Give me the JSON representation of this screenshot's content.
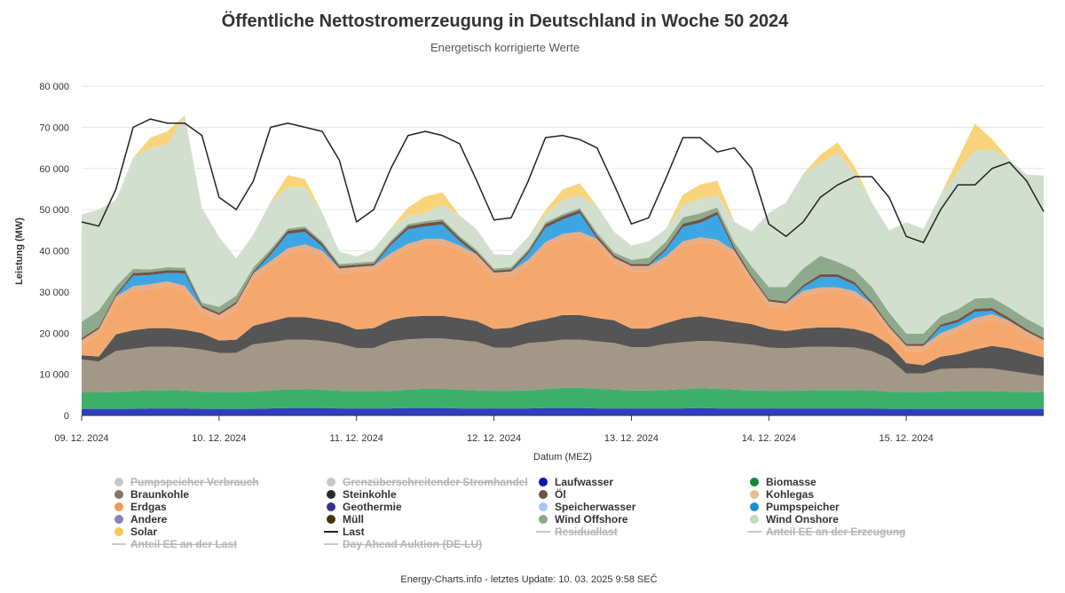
{
  "chart_data": {
    "type": "area",
    "title": "Öffentliche Nettostromerzeugung in Deutschland in Woche 50 2024",
    "subtitle": "Energetisch korrigierte Werte",
    "ylabel": "Leistung (MW)",
    "xlabel": "Datum (MEZ)",
    "ylim": [
      0,
      80000
    ],
    "y_ticks": [
      0,
      10000,
      20000,
      30000,
      40000,
      50000,
      60000,
      70000,
      80000
    ],
    "y_tick_labels": [
      "0",
      "10 000",
      "20 000",
      "30 000",
      "40 000",
      "50 000",
      "60 000",
      "70 000",
      "80 000"
    ],
    "xlim_hours": [
      0,
      168
    ],
    "x_tick_labels": [
      "09. 12. 2024",
      "10. 12. 2024",
      "11. 12. 2024",
      "12. 12. 2024",
      "13. 12. 2024",
      "14. 12. 2024",
      "15. 12. 2024"
    ],
    "stacked": true,
    "grid": "horizontal",
    "x_hours": [
      0,
      3,
      6,
      9,
      12,
      15,
      18,
      21,
      24,
      27,
      30,
      33,
      36,
      39,
      42,
      45,
      48,
      51,
      54,
      57,
      60,
      63,
      66,
      69,
      72,
      75,
      78,
      81,
      84,
      87,
      90,
      93,
      96,
      99,
      102,
      105,
      108,
      111,
      114,
      117,
      120,
      123,
      126,
      129,
      132,
      135,
      138,
      141,
      144,
      147,
      150,
      153,
      156,
      159,
      162,
      165,
      168
    ],
    "series": [
      {
        "name": "Laufwasser",
        "color": "#2f3fbf",
        "values": [
          1600,
          1600,
          1600,
          1600,
          1700,
          1700,
          1700,
          1600,
          1600,
          1600,
          1600,
          1700,
          1800,
          1800,
          1800,
          1700,
          1700,
          1700,
          1700,
          1800,
          1800,
          1800,
          1700,
          1700,
          1700,
          1700,
          1700,
          1800,
          1800,
          1800,
          1700,
          1700,
          1700,
          1700,
          1700,
          1700,
          1800,
          1700,
          1700,
          1700,
          1700,
          1700,
          1700,
          1700,
          1700,
          1700,
          1700,
          1600,
          1600,
          1600,
          1600,
          1600,
          1600,
          1600,
          1600,
          1600,
          1600
        ]
      },
      {
        "name": "Biomasse",
        "color": "#3cb06a",
        "values": [
          4000,
          4000,
          4100,
          4300,
          4500,
          4500,
          4400,
          4200,
          4100,
          4100,
          4200,
          4400,
          4600,
          4600,
          4500,
          4300,
          4200,
          4200,
          4300,
          4500,
          4700,
          4700,
          4600,
          4400,
          4300,
          4300,
          4400,
          4600,
          4900,
          4900,
          4800,
          4600,
          4400,
          4400,
          4500,
          4700,
          4800,
          4800,
          4600,
          4400,
          4300,
          4300,
          4400,
          4500,
          4500,
          4500,
          4400,
          4200,
          4100,
          4100,
          4200,
          4300,
          4300,
          4300,
          4200,
          4100,
          4000
        ]
      },
      {
        "name": "Braunkohle",
        "color": "#a39787",
        "values": [
          8000,
          7500,
          10000,
          10300,
          10500,
          10500,
          10400,
          10200,
          9500,
          9500,
          11500,
          11700,
          12000,
          12000,
          11800,
          11500,
          10500,
          10500,
          12000,
          12200,
          12200,
          12200,
          12000,
          11800,
          10500,
          10500,
          11500,
          11500,
          11700,
          11700,
          11500,
          11300,
          10500,
          10500,
          11200,
          11400,
          11500,
          11500,
          11300,
          11100,
          10500,
          10300,
          10500,
          10500,
          10400,
          10300,
          9500,
          8000,
          4500,
          4500,
          5500,
          5500,
          5600,
          5500,
          5000,
          4500,
          4000
        ]
      },
      {
        "name": "Steinkohle",
        "color": "#555555",
        "values": [
          1000,
          1200,
          4000,
          4500,
          4500,
          4500,
          4300,
          4000,
          3000,
          3200,
          4500,
          5000,
          5500,
          5500,
          5200,
          5000,
          4500,
          4800,
          5200,
          5500,
          5500,
          5500,
          5300,
          5000,
          4500,
          4800,
          5000,
          5500,
          6000,
          6000,
          5700,
          5500,
          4500,
          4500,
          5000,
          5800,
          6000,
          5500,
          5200,
          5000,
          4500,
          4200,
          4500,
          4700,
          4800,
          4500,
          4300,
          3500,
          2500,
          2000,
          3000,
          3500,
          4500,
          5500,
          5500,
          5000,
          4500
        ]
      },
      {
        "name": "Erdgas",
        "color": "#f5a86e",
        "values": [
          2500,
          5500,
          8000,
          9500,
          9500,
          10200,
          9500,
          5000,
          5000,
          7500,
          11500,
          13500,
          15500,
          16500,
          15500,
          12000,
          14000,
          14000,
          15000,
          16500,
          17500,
          17500,
          16500,
          15000,
          12500,
          12500,
          14000,
          17500,
          18500,
          19000,
          18000,
          14000,
          14000,
          14000,
          15000,
          17500,
          18000,
          18000,
          16000,
          10000,
          5500,
          5500,
          8000,
          8500,
          8500,
          8000,
          6000,
          3000,
          3000,
          3500,
          4500,
          5500,
          6500,
          6500,
          5500,
          4000,
          3000
        ]
      },
      {
        "name": "Müll",
        "color": "#e9ad86",
        "values": [
          1200,
          1200,
          1200,
          1200,
          1200,
          1200,
          1200,
          1200,
          1200,
          1200,
          1200,
          1200,
          1200,
          1200,
          1200,
          1200,
          1200,
          1200,
          1200,
          1200,
          1200,
          1200,
          1200,
          1200,
          1200,
          1200,
          1200,
          1200,
          1200,
          1200,
          1200,
          1200,
          1200,
          1200,
          1200,
          1200,
          1200,
          1200,
          1200,
          1200,
          1200,
          1200,
          1200,
          1200,
          1200,
          1200,
          1200,
          1200,
          1200,
          1200,
          1200,
          1200,
          1200,
          1200,
          1200,
          1200,
          1200
        ]
      },
      {
        "name": "Pumpspeicher",
        "color": "#3ca7e4",
        "values": [
          0,
          0,
          0,
          2500,
          2200,
          2000,
          3000,
          0,
          0,
          0,
          0,
          1500,
          3500,
          3000,
          1000,
          0,
          0,
          0,
          2000,
          3500,
          3000,
          3500,
          1000,
          0,
          0,
          0,
          1500,
          3500,
          3500,
          4500,
          0,
          0,
          0,
          0,
          1500,
          3500,
          3500,
          6000,
          0,
          0,
          0,
          0,
          800,
          2500,
          2500,
          1500,
          0,
          0,
          0,
          0,
          1500,
          1000,
          1500,
          800,
          0,
          0,
          0
        ]
      },
      {
        "name": "Öl",
        "color": "#6e5547",
        "values": [
          500,
          500,
          500,
          700,
          700,
          700,
          700,
          500,
          500,
          500,
          500,
          700,
          800,
          800,
          800,
          600,
          500,
          500,
          600,
          800,
          800,
          800,
          800,
          600,
          500,
          500,
          600,
          800,
          800,
          800,
          800,
          600,
          500,
          500,
          600,
          800,
          800,
          800,
          800,
          600,
          500,
          500,
          600,
          700,
          700,
          700,
          600,
          500,
          500,
          500,
          600,
          700,
          700,
          700,
          700,
          600,
          500
        ]
      },
      {
        "name": "Wind Offshore",
        "color": "#8fa98d",
        "values": [
          4000,
          4000,
          2000,
          1000,
          700,
          700,
          700,
          700,
          1500,
          1500,
          1000,
          700,
          500,
          500,
          500,
          500,
          500,
          500,
          500,
          500,
          500,
          500,
          500,
          500,
          500,
          500,
          500,
          500,
          500,
          500,
          700,
          700,
          1000,
          1500,
          1500,
          1500,
          1500,
          1000,
          1200,
          2200,
          3000,
          3500,
          4000,
          4500,
          3000,
          3000,
          3500,
          3000,
          2500,
          2500,
          2000,
          2500,
          2500,
          2500,
          2500,
          2500,
          2500
        ]
      },
      {
        "name": "Wind Onshore",
        "color": "#d2dfcf",
        "values": [
          26000,
          24500,
          21000,
          27000,
          29500,
          30000,
          37000,
          23000,
          17000,
          9000,
          8000,
          11500,
          10000,
          9500,
          7000,
          3000,
          1500,
          3000,
          3000,
          2000,
          2000,
          3500,
          5000,
          5000,
          3500,
          3000,
          3000,
          2000,
          3500,
          3000,
          6500,
          5000,
          3500,
          4000,
          3000,
          3000,
          3500,
          3000,
          5000,
          8500,
          18000,
          20500,
          23000,
          22500,
          26500,
          23500,
          20500,
          20000,
          27000,
          25500,
          29500,
          33500,
          36000,
          36000,
          36000,
          35000,
          37000
        ]
      },
      {
        "name": "Solar",
        "color": "#f9d47a",
        "values": [
          0,
          0,
          0,
          0,
          2500,
          3000,
          0,
          0,
          0,
          0,
          0,
          0,
          3000,
          2000,
          0,
          0,
          0,
          0,
          0,
          2000,
          4000,
          3000,
          0,
          0,
          0,
          0,
          0,
          1000,
          2500,
          3000,
          0,
          0,
          0,
          0,
          0,
          2500,
          3500,
          3500,
          0,
          0,
          0,
          0,
          0,
          2000,
          2500,
          1500,
          0,
          0,
          0,
          0,
          0,
          3000,
          6500,
          2500,
          0,
          0,
          0
        ]
      }
    ],
    "line_series": [
      {
        "name": "Last",
        "color": "#222222",
        "values": [
          47000,
          46000,
          55000,
          70000,
          72000,
          71000,
          71000,
          68000,
          53000,
          50000,
          57000,
          70000,
          71000,
          70000,
          69000,
          62000,
          47000,
          50000,
          60000,
          68000,
          69000,
          68000,
          66000,
          57000,
          47500,
          48000,
          57000,
          67500,
          68000,
          67000,
          65000,
          56000,
          46500,
          48000,
          57500,
          67500,
          67500,
          64000,
          65000,
          60000,
          46500,
          43500,
          47000,
          53000,
          56000,
          58000,
          58000,
          53000,
          43500,
          42000,
          50000,
          56000,
          56000,
          60000,
          61500,
          57000,
          49500
        ]
      }
    ],
    "legend": [
      {
        "name": "Pumpspeicher Verbrauch",
        "color": "#c8c8c8",
        "kind": "dot",
        "active": false
      },
      {
        "name": "Grenzüberschreitender Stromhandel",
        "color": "#c8c8c8",
        "kind": "dot",
        "active": false
      },
      {
        "name": "Laufwasser",
        "color": "#0b17a8",
        "kind": "dot",
        "active": true
      },
      {
        "name": "Biomasse",
        "color": "#0e8a3a",
        "kind": "dot",
        "active": true
      },
      {
        "name": "Braunkohle",
        "color": "#8a7060",
        "kind": "dot",
        "active": true
      },
      {
        "name": "Steinkohle",
        "color": "#2b2b2b",
        "kind": "dot",
        "active": true
      },
      {
        "name": "Öl",
        "color": "#6b5347",
        "kind": "dot",
        "active": true
      },
      {
        "name": "Kohlegas",
        "color": "#e3bf8f",
        "kind": "dot",
        "active": true
      },
      {
        "name": "Erdgas",
        "color": "#f19a5b",
        "kind": "dot",
        "active": true
      },
      {
        "name": "Geothermie",
        "color": "#37308f",
        "kind": "dot",
        "active": true
      },
      {
        "name": "Speicherwasser",
        "color": "#a9c4f2",
        "kind": "dot",
        "active": true
      },
      {
        "name": "Pumpspeicher",
        "color": "#1a8fd6",
        "kind": "dot",
        "active": true
      },
      {
        "name": "Andere",
        "color": "#8f7fba",
        "kind": "dot",
        "active": true
      },
      {
        "name": "Müll",
        "color": "#4a3210",
        "kind": "dot",
        "active": true
      },
      {
        "name": "Wind Offshore",
        "color": "#8da68b",
        "kind": "dot",
        "active": true
      },
      {
        "name": "Wind Onshore",
        "color": "#c4d8c1",
        "kind": "dot",
        "active": true
      },
      {
        "name": "Solar",
        "color": "#f7c851",
        "kind": "dot",
        "active": true
      },
      {
        "name": "Last",
        "color": "#222222",
        "kind": "line",
        "active": true
      },
      {
        "name": "Residuallast",
        "color": "#c8c8c8",
        "kind": "line",
        "active": false
      },
      {
        "name": "Anteil EE an der Erzeugung",
        "color": "#c8c8c8",
        "kind": "line",
        "active": false
      },
      {
        "name": "Anteil EE an der Last",
        "color": "#c8c8c8",
        "kind": "line",
        "active": false
      },
      {
        "name": "Day Ahead Auktion (DE-LU)",
        "color": "#c8c8c8",
        "kind": "line",
        "active": false
      }
    ]
  },
  "footer": "Energy-Charts.info - letztes Update: 10. 03. 2025 9:58 SEČ"
}
